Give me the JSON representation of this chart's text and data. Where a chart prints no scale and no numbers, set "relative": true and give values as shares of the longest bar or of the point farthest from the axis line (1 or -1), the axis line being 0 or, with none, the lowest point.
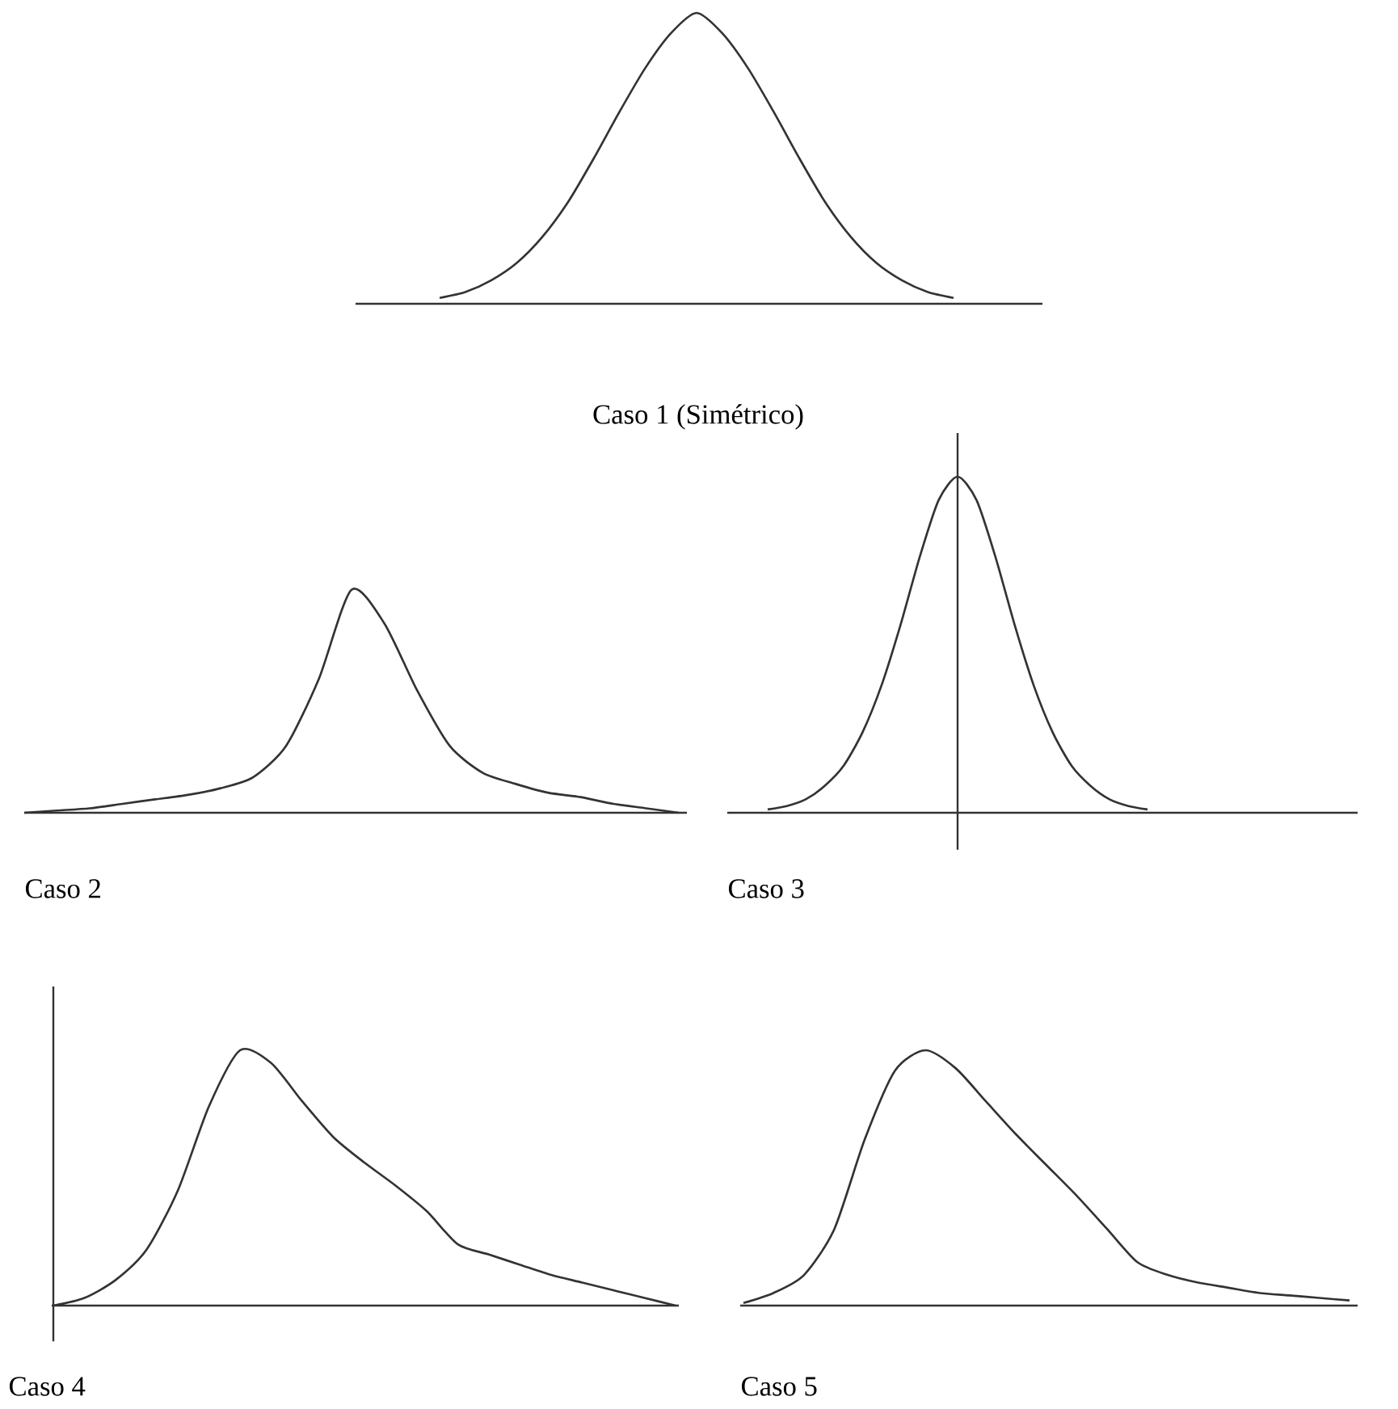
{
  "chart_data": [
    {
      "type": "line",
      "title": "Caso 1 (Simétrico)",
      "relative": true,
      "color": "#333333",
      "categories": [
        null,
        null,
        null,
        null,
        null,
        null,
        null,
        null,
        null,
        null,
        null,
        null,
        null,
        null,
        null,
        null,
        null,
        null,
        null,
        null,
        null
      ],
      "values": [
        0.02,
        0.04,
        0.08,
        0.14,
        0.23,
        0.35,
        0.5,
        0.66,
        0.81,
        0.93,
        1,
        0.93,
        0.81,
        0.66,
        0.5,
        0.35,
        0.23,
        0.14,
        0.08,
        0.04,
        0.02
      ]
    },
    {
      "type": "line",
      "title": "Caso 2",
      "relative": true,
      "color": "#333333",
      "categories": [
        null,
        null,
        null,
        null,
        null,
        null,
        null,
        null,
        null,
        null,
        null,
        null,
        null,
        null,
        null,
        null,
        null,
        null,
        null,
        null,
        null
      ],
      "values": [
        0,
        0.01,
        0.02,
        0.04,
        0.06,
        0.08,
        0.11,
        0.16,
        0.3,
        0.6,
        1,
        0.85,
        0.55,
        0.3,
        0.18,
        0.13,
        0.09,
        0.07,
        0.04,
        0.02,
        0
      ]
    },
    {
      "type": "line",
      "title": "Caso 3",
      "relative": true,
      "color": "#333333",
      "categories": [
        null,
        null,
        null,
        null,
        null,
        null,
        null,
        null,
        null,
        null,
        null,
        null,
        null,
        null,
        null,
        null,
        null,
        null,
        null,
        null,
        null
      ],
      "values": [
        0.01,
        0.02,
        0.04,
        0.08,
        0.14,
        0.24,
        0.38,
        0.56,
        0.76,
        0.93,
        1,
        0.93,
        0.76,
        0.56,
        0.38,
        0.24,
        0.14,
        0.08,
        0.04,
        0.02,
        0.01
      ]
    },
    {
      "type": "line",
      "title": "Caso 4",
      "relative": true,
      "color": "#333333",
      "categories": [
        null,
        null,
        null,
        null,
        null,
        null,
        null,
        null,
        null,
        null,
        null,
        null,
        null,
        null,
        null,
        null,
        null,
        null,
        null,
        null,
        null
      ],
      "values": [
        0,
        0.03,
        0.1,
        0.22,
        0.45,
        0.78,
        1,
        0.95,
        0.8,
        0.66,
        0.56,
        0.47,
        0.37,
        0.24,
        0.2,
        0.16,
        0.12,
        0.09,
        0.06,
        0.03,
        0
      ]
    },
    {
      "type": "line",
      "title": "Caso 5",
      "relative": true,
      "color": "#333333",
      "categories": [
        null,
        null,
        null,
        null,
        null,
        null,
        null,
        null,
        null,
        null,
        null,
        null,
        null,
        null,
        null,
        null,
        null,
        null,
        null,
        null,
        null
      ],
      "values": [
        0.01,
        0.05,
        0.12,
        0.3,
        0.65,
        0.92,
        1,
        0.93,
        0.8,
        0.67,
        0.55,
        0.43,
        0.3,
        0.17,
        0.12,
        0.09,
        0.07,
        0.05,
        0.04,
        0.03,
        0.02
      ]
    }
  ]
}
